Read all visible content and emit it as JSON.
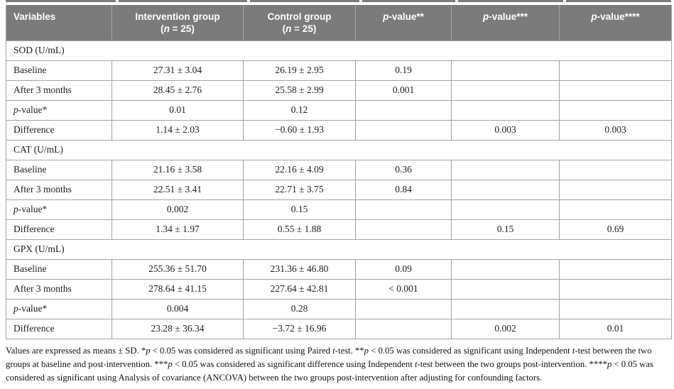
{
  "colors": {
    "header_bg": "#7b7b7b",
    "header_text": "#ffffff",
    "grid_line": "#a3a3a3",
    "body_text": "#1c1c1c"
  },
  "header": {
    "columns": [
      {
        "segments": [
          {
            "t": "Variables"
          }
        ]
      },
      {
        "segments": [
          {
            "t": "Intervention group"
          }
        ],
        "sub": [
          {
            "t": "("
          },
          {
            "t": "n",
            "i": 1
          },
          {
            "t": " = 25)"
          }
        ]
      },
      {
        "segments": [
          {
            "t": "Control group"
          }
        ],
        "sub": [
          {
            "t": "("
          },
          {
            "t": "n",
            "i": 1
          },
          {
            "t": " = 25)"
          }
        ]
      },
      {
        "segments": [
          {
            "t": "p",
            "i": 1
          },
          {
            "t": "-value**"
          }
        ]
      },
      {
        "segments": [
          {
            "t": "p",
            "i": 1
          },
          {
            "t": "-value***"
          }
        ]
      },
      {
        "segments": [
          {
            "t": "p",
            "i": 1
          },
          {
            "t": "-value****"
          }
        ]
      }
    ]
  },
  "sections": [
    {
      "title": "SOD (U/mL)",
      "rows": [
        {
          "label": "Baseline",
          "values": [
            "27.31 ± 3.04",
            "26.19 ± 2.95",
            "0.19",
            "",
            ""
          ]
        },
        {
          "label": "After 3 months",
          "values": [
            "28.45 ± 2.76",
            "25.58 ± 2.99",
            "0.001",
            "",
            ""
          ]
        },
        {
          "label_segments": [
            {
              "t": "p",
              "i": 1
            },
            {
              "t": "-value*"
            }
          ],
          "values": [
            "0.01",
            "0.12",
            "",
            "",
            ""
          ]
        },
        {
          "label": "Difference",
          "values": [
            "1.14 ± 2.03",
            "−0.60 ± 1.93",
            "",
            "0.003",
            "0.003"
          ]
        }
      ]
    },
    {
      "title": "CAT (U/mL)",
      "rows": [
        {
          "label": "Baseline",
          "values": [
            "21.16 ± 3.58",
            "22.16 ± 4.09",
            "0.36",
            "",
            ""
          ]
        },
        {
          "label": "After 3 months",
          "values": [
            "22.51 ± 3.41",
            "22.71 ± 3.75",
            "0.84",
            "",
            ""
          ]
        },
        {
          "label_segments": [
            {
              "t": "p",
              "i": 1
            },
            {
              "t": "-value*"
            }
          ],
          "values": [
            "0.002",
            "0.15",
            "",
            "",
            ""
          ]
        },
        {
          "label": "Difference",
          "values": [
            "1.34 ± 1.97",
            "0.55 ± 1.88",
            "",
            "0.15",
            "0.69"
          ]
        }
      ]
    },
    {
      "title": "GPX (U/mL)",
      "rows": [
        {
          "label": "Baseline",
          "values": [
            "255.36 ± 51.70",
            "231.36 ± 46.80",
            "0.09",
            "",
            ""
          ]
        },
        {
          "label": "After 3 months",
          "values": [
            "278.64 ± 41.15",
            "227.64 ± 42.81",
            "< 0.001",
            "",
            ""
          ]
        },
        {
          "label_segments": [
            {
              "t": "p",
              "i": 1
            },
            {
              "t": "-value*"
            }
          ],
          "values": [
            "0.004",
            "0.28",
            "",
            "",
            ""
          ]
        },
        {
          "label": "Difference",
          "values": [
            "23.28 ± 36.34",
            "−3.72 ± 16.96",
            "",
            "0.002",
            "0.01"
          ]
        }
      ]
    }
  ],
  "footnote": {
    "segments": [
      {
        "t": "Values are expressed as means ± SD. *"
      },
      {
        "t": "p",
        "i": 1
      },
      {
        "t": " < 0.05 was considered as significant using Paired "
      },
      {
        "t": "t",
        "i": 1
      },
      {
        "t": "-test. **"
      },
      {
        "t": "p",
        "i": 1
      },
      {
        "t": " < 0.05 was considered as significant using Independent "
      },
      {
        "t": "t",
        "i": 1
      },
      {
        "t": "-test between the two groups at baseline and post-intervention. ***"
      },
      {
        "t": "p",
        "i": 1
      },
      {
        "t": " < 0.05 was considered as significant difference using Independent "
      },
      {
        "t": "t",
        "i": 1
      },
      {
        "t": "-test between the two groups post-intervention. ****"
      },
      {
        "t": "p",
        "i": 1
      },
      {
        "t": " < 0.05 was considered as significant using Analysis of covariance (ANCOVA) between the two groups post-intervention after adjusting for confounding factors."
      }
    ]
  }
}
